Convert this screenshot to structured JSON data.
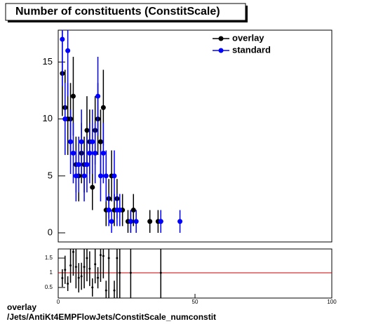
{
  "chart_data": [
    {
      "type": "scatter",
      "title": "Number of constituents (ConstitScale)",
      "xlim": [
        0,
        100
      ],
      "ylim": [
        -0.8,
        17.8
      ],
      "yticks": [
        0,
        5,
        10,
        15
      ],
      "legend": "top-right",
      "series": [
        {
          "name": "overlay",
          "color": "#000000",
          "x": [
            1.5,
            2.5,
            3.5,
            4.5,
            5.5,
            6.5,
            7.5,
            8.5,
            9.5,
            10.5,
            11.5,
            12.5,
            13.5,
            14.5,
            15.5,
            16.5,
            17.5,
            18.5,
            19.5,
            20.5,
            21.5,
            22.5,
            23.5,
            25.5,
            26.5,
            27.5,
            33.5,
            36.5,
            37.5
          ],
          "values": [
            14,
            11,
            10,
            10,
            12,
            6,
            5,
            7,
            6,
            9,
            8,
            4,
            9,
            10,
            8,
            11,
            2,
            3,
            5,
            2,
            3,
            2,
            2,
            1,
            1,
            2,
            1,
            1,
            1
          ],
          "errors": [
            3.74,
            3.32,
            3.16,
            3.16,
            3.46,
            2.45,
            2.24,
            2.65,
            2.45,
            3,
            2.83,
            2,
            3,
            3.16,
            2.83,
            3.32,
            1.41,
            1.73,
            2.24,
            1.41,
            1.73,
            1.41,
            1.41,
            1,
            1,
            1.41,
            1,
            1,
            1
          ]
        },
        {
          "name": "standard",
          "color": "#0000ff",
          "x": [
            1.5,
            2.5,
            3.5,
            4.5,
            5.5,
            6.5,
            7.5,
            8.5,
            9.5,
            10.5,
            11.5,
            12.5,
            13.5,
            14.5,
            15.5,
            16.5,
            17.5,
            18.5,
            19.5,
            20.5,
            21.5,
            22.5,
            26.5,
            28.5,
            37.5,
            44.5
          ],
          "values": [
            17,
            10,
            16,
            8,
            7,
            5,
            6,
            8,
            5,
            6,
            7,
            8,
            7,
            12,
            5,
            7,
            5,
            2,
            1,
            5,
            2,
            2,
            1,
            1,
            1,
            1
          ],
          "errors": [
            4.12,
            3.16,
            4,
            2.83,
            2.65,
            2.24,
            2.45,
            2.83,
            2.24,
            2.45,
            2.65,
            2.83,
            2.65,
            3.46,
            2.24,
            2.65,
            2.24,
            1.41,
            1,
            2.24,
            1.41,
            1.41,
            1,
            1,
            1,
            1
          ]
        }
      ]
    },
    {
      "type": "scatter",
      "xlim": [
        0,
        100
      ],
      "ylim": [
        0.14,
        1.81
      ],
      "xticks": [
        0,
        50,
        100
      ],
      "yticks": [
        0.5,
        1,
        1.5
      ],
      "hline": 1,
      "hline_color": "#cc0000",
      "series": [
        {
          "color": "#000000",
          "x": [
            1.5,
            2.5,
            3.5,
            4.5,
            5.5,
            6.5,
            7.5,
            8.5,
            9.5,
            10.5,
            11.5,
            12.5,
            13.5,
            14.5,
            15.5,
            16.5,
            17.5,
            18.5,
            20.5,
            21.5,
            22.5,
            26.5,
            37.5
          ],
          "values": [
            0.82,
            1.1,
            0.63,
            1.25,
            1.71,
            1.2,
            0.83,
            0.88,
            1.2,
            1.5,
            1.14,
            0.5,
            1.29,
            0.83,
            1.6,
            1.57,
            0.4,
            1.5,
            0.4,
            1.5,
            1,
            1,
            1
          ],
          "errors": [
            0.3,
            0.48,
            0.25,
            0.59,
            0.81,
            0.73,
            0.5,
            0.46,
            0.73,
            0.79,
            0.59,
            0.31,
            0.65,
            0.36,
            0.91,
            0.76,
            0.33,
            1.37,
            0.33,
            1.37,
            1,
            1.41,
            1.41
          ]
        }
      ]
    }
  ],
  "footer": [
    "overlay",
    "/Jets/AntiKt4EMPFlowJets/ConstitScale_numconstit"
  ]
}
